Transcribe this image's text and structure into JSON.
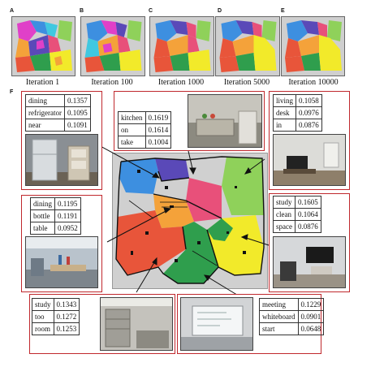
{
  "panel_letters": {
    "A": "A",
    "B": "B",
    "C": "C",
    "D": "D",
    "E": "E",
    "F": "F"
  },
  "iterations": [
    {
      "letter": "A",
      "caption": "Iteration 1"
    },
    {
      "letter": "B",
      "caption": "Iteration 100"
    },
    {
      "letter": "C",
      "caption": "Iteration 1000"
    },
    {
      "letter": "D",
      "caption": "Iteration 5000"
    },
    {
      "letter": "E",
      "caption": "Iteration 10000"
    }
  ],
  "place_words": {
    "dining_fridge": [
      [
        "dining",
        "0.1357"
      ],
      [
        "refrigerator",
        "0.1095"
      ],
      [
        "near",
        "0.1091"
      ]
    ],
    "kitchen": [
      [
        "kitchen",
        "0.1619"
      ],
      [
        "on",
        "0.1614"
      ],
      [
        "take",
        "0.1004"
      ]
    ],
    "living": [
      [
        "living",
        "0.1058"
      ],
      [
        "desk",
        "0.0976"
      ],
      [
        "in",
        "0.0876"
      ]
    ],
    "dining_bottle": [
      [
        "dining",
        "0.1195"
      ],
      [
        "bottle",
        "0.1191"
      ],
      [
        "table",
        "0.0952"
      ]
    ],
    "study_clean": [
      [
        "study",
        "0.1605"
      ],
      [
        "clean",
        "0.1064"
      ],
      [
        "space",
        "0.0876"
      ]
    ],
    "study_room": [
      [
        "study",
        "0.1343"
      ],
      [
        "too",
        "0.1272"
      ],
      [
        "room",
        "0.1253"
      ]
    ],
    "meeting": [
      [
        "meeting",
        "0.1229"
      ],
      [
        "whiteboard",
        "0.0901"
      ],
      [
        "start",
        "0.0648"
      ]
    ]
  },
  "colors": {
    "blue": "#3d8fe0",
    "purple": "#5a49b8",
    "pink": "#e8507a",
    "lightgreen": "#8fd15a",
    "orange": "#f4a23a",
    "red": "#e8553a",
    "green": "#2f9e4d",
    "yellow": "#f2ea2a",
    "magenta": "#e040c8",
    "cyan": "#40c8e0",
    "frame": "#c0282d"
  }
}
